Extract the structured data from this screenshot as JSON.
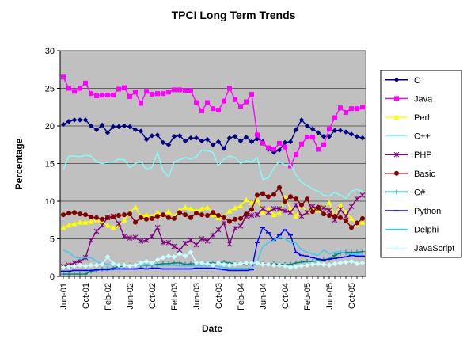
{
  "chart_data": {
    "type": "line",
    "title": "TPCI Long Term Trends",
    "xlabel": "Date",
    "ylabel": "Percentage",
    "ylim": [
      0,
      30
    ],
    "yticks": [
      0,
      5,
      10,
      15,
      20,
      25,
      30
    ],
    "grid": true,
    "legend_position": "right",
    "plot_background": "#c0c0c0",
    "x": [
      "Jun-01",
      "Jul-01",
      "Aug-01",
      "Sep-01",
      "Oct-01",
      "Nov-01",
      "Dec-01",
      "Jan-02",
      "Feb-02",
      "Mar-02",
      "Apr-02",
      "May-02",
      "Jun-02",
      "Jul-02",
      "Aug-02",
      "Sep-02",
      "Oct-02",
      "Nov-02",
      "Dec-02",
      "Jan-03",
      "Feb-03",
      "Mar-03",
      "Apr-03",
      "May-03",
      "Jun-03",
      "Jul-03",
      "Aug-03",
      "Sep-03",
      "Oct-03",
      "Nov-03",
      "Dec-03",
      "Jan-04",
      "Feb-04",
      "Mar-04",
      "Apr-04",
      "May-04",
      "Jun-04",
      "Jul-04",
      "Aug-04",
      "Sep-04",
      "Oct-04",
      "Nov-04",
      "Dec-04",
      "Jan-05",
      "Feb-05",
      "Mar-05",
      "Apr-05",
      "May-05",
      "Jun-05",
      "Jul-05",
      "Aug-05",
      "Sep-05",
      "Oct-05",
      "Nov-05",
      "Dec-05"
    ],
    "xtick_labels": [
      "Jun-01",
      "Oct-01",
      "Feb-02",
      "Jun-02",
      "Oct-02",
      "Feb-03",
      "Jun-03",
      "Oct-03",
      "Feb-04",
      "Jun-04",
      "Oct-04",
      "Feb-05",
      "Jun-05",
      "Oct-05"
    ],
    "series": [
      {
        "name": "C",
        "color": "#000080",
        "marker": "diamond",
        "values": [
          20.2,
          20.6,
          20.8,
          20.8,
          20.8,
          20.0,
          19.5,
          20.1,
          19.1,
          19.9,
          19.9,
          20.0,
          19.9,
          19.5,
          19.3,
          18.2,
          18.7,
          18.8,
          17.8,
          17.5,
          18.6,
          18.7,
          18.0,
          18.4,
          18.4,
          18.0,
          18.2,
          17.5,
          17.9,
          17.0,
          18.4,
          18.6,
          18.0,
          18.5,
          17.9,
          18.3,
          17.9,
          16.9,
          16.5,
          16.8,
          17.8,
          17.9,
          19.5,
          20.8,
          20.0,
          19.6,
          19.1,
          18.6,
          18.6,
          19.4,
          19.4,
          19.2,
          18.9,
          18.6,
          18.4
        ]
      },
      {
        "name": "Java",
        "color": "#ff00ff",
        "marker": "square",
        "values": [
          26.5,
          25.0,
          24.6,
          25.0,
          25.7,
          24.3,
          24.0,
          24.1,
          24.1,
          24.1,
          24.9,
          25.1,
          23.9,
          24.5,
          23.0,
          24.6,
          24.2,
          24.3,
          24.3,
          24.5,
          24.8,
          24.8,
          24.7,
          24.7,
          23.1,
          22.0,
          23.1,
          22.3,
          22.1,
          23.3,
          25.0,
          23.5,
          22.6,
          23.2,
          24.2,
          18.8,
          17.7,
          17.1,
          16.9,
          17.7,
          17.2,
          14.7,
          16.2,
          17.6,
          18.5,
          18.5,
          16.9,
          17.5,
          19.6,
          21.1,
          22.4,
          21.8,
          22.3,
          22.3,
          22.5
        ]
      },
      {
        "name": "Perl",
        "color": "#ffff00",
        "marker": "triangle",
        "values": [
          6.5,
          6.8,
          7.0,
          7.2,
          7.2,
          7.3,
          7.5,
          7.2,
          6.8,
          6.5,
          6.8,
          7.5,
          8.5,
          9.2,
          8.0,
          8.2,
          8.0,
          8.5,
          8.2,
          8.6,
          8.0,
          8.8,
          9.2,
          9.0,
          8.7,
          9.0,
          9.2,
          8.2,
          7.8,
          8.0,
          8.7,
          9.1,
          9.4,
          10.2,
          9.8,
          10.2,
          8.5,
          9.0,
          8.2,
          8.4,
          10.5,
          9.0,
          8.0,
          9.5,
          8.5,
          9.0,
          8.8,
          9.2,
          9.8,
          8.0,
          9.5,
          8.5,
          7.7,
          7.0,
          7.2
        ]
      },
      {
        "name": "C++",
        "color": "#80ffff",
        "marker": "none",
        "values": [
          14.2,
          16.0,
          16.0,
          15.9,
          16.1,
          16.0,
          15.2,
          15.0,
          15.2,
          15.2,
          15.6,
          15.5,
          14.5,
          15.0,
          15.3,
          14.2,
          14.5,
          16.5,
          14.0,
          13.2,
          15.2,
          15.5,
          15.8,
          15.6,
          15.9,
          16.8,
          16.7,
          16.5,
          14.7,
          15.6,
          16.0,
          15.8,
          15.0,
          15.4,
          15.2,
          15.8,
          12.9,
          13.1,
          14.4,
          15.3,
          14.8,
          14.9,
          13.5,
          12.5,
          12.1,
          11.6,
          11.3,
          10.8,
          10.7,
          11.2,
          10.8,
          10.4,
          11.3,
          11.6,
          11.3
        ]
      },
      {
        "name": "PHP",
        "color": "#800080",
        "marker": "star",
        "values": [
          1.3,
          1.5,
          1.8,
          2.0,
          2.5,
          4.8,
          6.0,
          6.8,
          7.8,
          8.0,
          7.0,
          5.3,
          5.1,
          5.2,
          4.7,
          4.8,
          5.3,
          6.5,
          4.5,
          4.5,
          4.0,
          3.5,
          4.4,
          4.8,
          4.2,
          5.0,
          4.7,
          5.5,
          6.2,
          7.1,
          4.3,
          6.4,
          6.7,
          8.0,
          8.1,
          8.2,
          9.0,
          8.5,
          9.0,
          9.0,
          8.7,
          8.5,
          9.5,
          8.0,
          8.5,
          9.3,
          9.0,
          9.1,
          8.8,
          7.5,
          8.9,
          8.0,
          9.3,
          10.3,
          10.8
        ]
      },
      {
        "name": "Basic",
        "color": "#800000",
        "marker": "circle",
        "values": [
          8.2,
          8.4,
          8.5,
          8.3,
          8.2,
          7.9,
          7.8,
          7.6,
          7.8,
          7.9,
          8.1,
          8.2,
          8.3,
          7.2,
          7.8,
          7.6,
          7.7,
          8.0,
          8.2,
          7.8,
          7.7,
          8.5,
          8.2,
          7.8,
          8.4,
          8.2,
          8.1,
          8.5,
          8.1,
          7.8,
          7.3,
          7.6,
          7.7,
          8.3,
          8.9,
          10.8,
          11.0,
          10.6,
          10.9,
          11.8,
          10.0,
          10.6,
          10.3,
          9.5,
          10.3,
          8.6,
          9.2,
          8.3,
          8.1,
          8.0,
          7.8,
          7.4,
          6.5,
          7.1,
          7.7
        ]
      },
      {
        "name": "C#",
        "color": "#008080",
        "marker": "plus",
        "values": [
          0.3,
          0.3,
          0.3,
          0.3,
          0.3,
          0.7,
          0.8,
          1.0,
          1.0,
          1.1,
          1.3,
          1.4,
          1.5,
          1.5,
          1.5,
          1.5,
          1.5,
          1.6,
          1.7,
          1.7,
          1.8,
          1.8,
          1.6,
          1.7,
          1.7,
          1.8,
          1.8,
          1.8,
          1.8,
          1.9,
          1.8,
          1.7,
          1.7,
          1.7,
          1.8,
          1.8,
          1.7,
          1.6,
          1.7,
          1.6,
          1.6,
          1.6,
          1.8,
          1.9,
          2.0,
          2.0,
          2.1,
          2.2,
          2.3,
          2.8,
          3.1,
          3.2,
          3.2,
          3.2,
          3.3
        ]
      },
      {
        "name": "Python",
        "color": "#0000ff",
        "marker": "dash",
        "values": [
          0.7,
          0.7,
          0.8,
          0.8,
          0.8,
          0.8,
          0.9,
          0.9,
          0.9,
          1.0,
          1.0,
          1.0,
          1.0,
          1.0,
          1.1,
          1.0,
          1.1,
          1.1,
          1.0,
          1.0,
          1.0,
          1.0,
          1.0,
          1.0,
          1.1,
          1.1,
          1.1,
          1.1,
          1.0,
          0.9,
          0.8,
          0.8,
          0.8,
          0.8,
          0.9,
          4.5,
          6.5,
          5.8,
          4.8,
          5.5,
          6.2,
          5.5,
          3.2,
          2.8,
          2.7,
          2.5,
          2.3,
          2.2,
          2.3,
          2.4,
          2.5,
          2.6,
          2.8,
          2.7,
          2.7
        ]
      },
      {
        "name": "Delphi",
        "color": "#33ccff",
        "marker": "none",
        "values": [
          3.5,
          3.2,
          2.6,
          2.4,
          2.5,
          2.5,
          2.0,
          1.8,
          1.6,
          1.5,
          1.5,
          1.5,
          1.5,
          1.5,
          1.5,
          1.6,
          1.5,
          1.5,
          1.5,
          1.5,
          1.5,
          1.4,
          1.4,
          1.4,
          1.4,
          1.4,
          1.4,
          1.5,
          1.3,
          1.2,
          1.1,
          1.1,
          1.1,
          1.1,
          1.1,
          2.0,
          4.0,
          4.5,
          4.8,
          5.2,
          5.0,
          4.5,
          4.5,
          3.5,
          3.2,
          3.0,
          2.8,
          3.5,
          3.0,
          3.2,
          3.3,
          3.1,
          2.9,
          3.0,
          3.0
        ]
      },
      {
        "name": "JavaScript",
        "color": "#ccffff",
        "marker": "diamond",
        "values": [
          1.2,
          1.3,
          1.4,
          1.5,
          1.4,
          1.5,
          1.5,
          1.6,
          2.6,
          1.7,
          1.5,
          1.5,
          1.4,
          1.5,
          1.8,
          2.0,
          1.8,
          2.2,
          2.5,
          2.7,
          2.6,
          3.0,
          2.7,
          3.2,
          1.8,
          1.8,
          1.7,
          1.5,
          1.8,
          1.6,
          1.5,
          1.6,
          1.7,
          1.8,
          1.8,
          1.8,
          1.6,
          1.6,
          1.5,
          1.5,
          1.4,
          1.2,
          1.3,
          1.4,
          1.5,
          1.6,
          1.7,
          1.6,
          1.5,
          1.7,
          1.8,
          1.9,
          2.0,
          1.7,
          1.8
        ]
      }
    ]
  }
}
